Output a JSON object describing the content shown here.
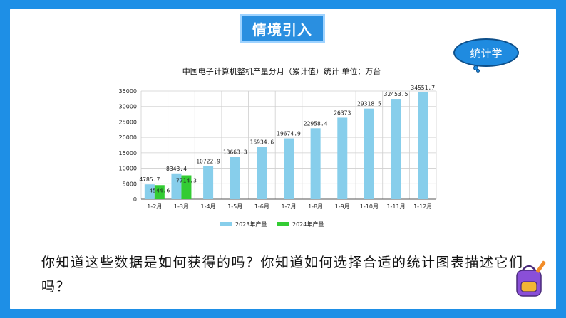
{
  "slide": {
    "title": "情境引入",
    "bubble": "统计学",
    "question": "你知道这些数据是如何获得的吗？你知道如何选择合适的统计图表描述它们吗？"
  },
  "colors": {
    "frame": "#1e8fe6",
    "series_2023": "#87ceeb",
    "series_2024": "#33cc33"
  },
  "chart_data": {
    "type": "bar",
    "title": "中国电子计算机整机产量分月（累计值）统计  单位：万台",
    "categories": [
      "1-2月",
      "1-3月",
      "1-4月",
      "1-5月",
      "1-6月",
      "1-7月",
      "1-8月",
      "1-9月",
      "1-10月",
      "1-11月",
      "1-12月"
    ],
    "series": [
      {
        "name": "2023年产量",
        "values": [
          4785.7,
          8343.4,
          10722.9,
          13663.3,
          16934.6,
          19674.9,
          22958.4,
          26373,
          29318.5,
          32453.5,
          34551.7
        ]
      },
      {
        "name": "2024年产量",
        "values": [
          4544.6,
          7714.3,
          null,
          null,
          null,
          null,
          null,
          null,
          null,
          null,
          null
        ]
      }
    ],
    "labels_2023": [
      "4785.7",
      "8343.4",
      "10722.9",
      "13663.3",
      "16934.6",
      "19674.9",
      "22958.4",
      "26373",
      "29318.5",
      "32453.5",
      "34551.7"
    ],
    "labels_2024": [
      "4544.6",
      "7714.3"
    ],
    "yticks": [
      "0",
      "5000",
      "10000",
      "15000",
      "20000",
      "25000",
      "30000",
      "35000"
    ],
    "ylim": [
      0,
      35000
    ],
    "grid": true,
    "legend_position": "bottom"
  }
}
